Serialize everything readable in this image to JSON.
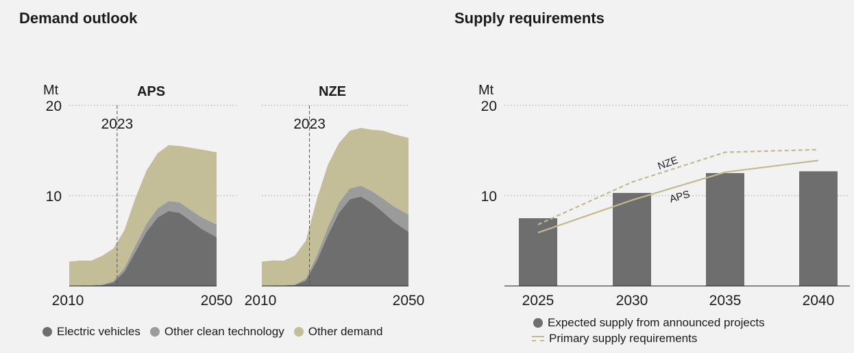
{
  "colors": {
    "ev": "#6e6e6e",
    "other_clean": "#9b9b9b",
    "other_demand": "#c3bd98",
    "bar": "#6e6e6e",
    "line": "#c2b98f",
    "axis": "#1a1a1a",
    "grid": "#9a9a9a"
  },
  "demand": {
    "title": "Demand outlook",
    "legend": [
      {
        "label": "Electric vehicles",
        "color_key": "ev"
      },
      {
        "label": "Other clean technology",
        "color_key": "other_clean"
      },
      {
        "label": "Other demand",
        "color_key": "other_demand"
      }
    ]
  },
  "supply": {
    "title": "Supply requirements",
    "legend": [
      {
        "label": "Expected supply from announced projects",
        "icon": "dot"
      },
      {
        "label": "Primary supply requirements",
        "icon": "line-dash"
      }
    ]
  },
  "chart_data": [
    {
      "type": "area",
      "title": "APS",
      "unit": "Mt",
      "xlim": [
        2010,
        2050
      ],
      "ylim": [
        0,
        20
      ],
      "yticks": [
        10,
        20
      ],
      "xtick_labels": [
        "2010",
        "2050"
      ],
      "marker": {
        "x": 2023,
        "label": "2023"
      },
      "stacked": true,
      "x": [
        2010,
        2013,
        2016,
        2019,
        2022,
        2025,
        2028,
        2031,
        2034,
        2037,
        2040,
        2043,
        2046,
        2050
      ],
      "series": [
        {
          "name": "Electric vehicles",
          "color_key": "ev",
          "values": [
            0,
            0.02,
            0.05,
            0.1,
            0.4,
            1.6,
            3.8,
            6.0,
            7.6,
            8.3,
            8.1,
            7.2,
            6.3,
            5.4
          ]
        },
        {
          "name": "Other clean technology",
          "color_key": "other_clean",
          "values": [
            0.05,
            0.05,
            0.05,
            0.05,
            0.15,
            0.4,
            0.7,
            0.9,
            1.0,
            1.1,
            1.15,
            1.2,
            1.3,
            1.4
          ]
        },
        {
          "name": "Other demand",
          "color_key": "other_demand",
          "values": [
            2.65,
            2.75,
            2.7,
            3.2,
            3.6,
            4.2,
            5.3,
            5.9,
            6.1,
            6.2,
            6.25,
            6.9,
            7.5,
            8.0
          ]
        }
      ]
    },
    {
      "type": "area",
      "title": "NZE",
      "unit": "",
      "xlim": [
        2010,
        2050
      ],
      "ylim": [
        0,
        20
      ],
      "yticks": [],
      "xtick_labels": [
        "2010",
        "2050"
      ],
      "marker": {
        "x": 2023,
        "label": "2023"
      },
      "stacked": true,
      "x": [
        2010,
        2013,
        2016,
        2019,
        2022,
        2025,
        2028,
        2031,
        2034,
        2037,
        2040,
        2043,
        2046,
        2050
      ],
      "series": [
        {
          "name": "Electric vehicles",
          "color_key": "ev",
          "values": [
            0,
            0.02,
            0.05,
            0.1,
            0.6,
            2.8,
            5.6,
            8.1,
            9.6,
            9.9,
            9.2,
            8.2,
            7.1,
            6.0
          ]
        },
        {
          "name": "Other clean technology",
          "color_key": "other_clean",
          "values": [
            0.05,
            0.05,
            0.05,
            0.05,
            0.2,
            0.6,
            0.9,
            1.1,
            1.2,
            1.2,
            1.3,
            1.5,
            1.7,
            1.9
          ]
        },
        {
          "name": "Other demand",
          "color_key": "other_demand",
          "values": [
            2.65,
            2.75,
            2.7,
            3.2,
            4.2,
            6.2,
            6.9,
            6.6,
            6.4,
            6.4,
            6.8,
            7.5,
            8.0,
            8.5
          ]
        }
      ]
    },
    {
      "type": "bar",
      "unit": "Mt",
      "ylim": [
        0,
        20
      ],
      "yticks": [
        10,
        20
      ],
      "categories": [
        "2025",
        "2030",
        "2035",
        "2040"
      ],
      "values": [
        7.5,
        10.3,
        12.5,
        12.7
      ],
      "series_name": "Expected supply from announced projects",
      "lines": [
        {
          "label": "NZE",
          "style": "dashed",
          "values": [
            6.8,
            11.5,
            14.8,
            15.1
          ]
        },
        {
          "label": "APS",
          "style": "solid",
          "values": [
            5.9,
            9.5,
            12.6,
            13.9
          ]
        }
      ],
      "line_series_name": "Primary supply requirements"
    }
  ]
}
